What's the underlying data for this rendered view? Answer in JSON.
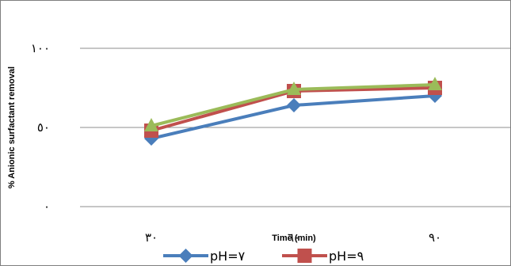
{
  "chart_data": {
    "type": "line",
    "title": "",
    "xlabel": "Time (min)",
    "ylabel": "% Anionic surfactant removal",
    "categories": [
      "٣٠",
      "٦٠",
      "٩٠"
    ],
    "x": [
      30,
      60,
      90
    ],
    "y_ticks": [
      "٠",
      "٥٠",
      "١٠٠"
    ],
    "ylim": [
      0,
      100
    ],
    "grid": true,
    "legend_position": "bottom",
    "series": [
      {
        "name": "pH=٧",
        "marker": "diamond",
        "color": "#4a7ebb",
        "values": [
          43,
          64,
          70
        ]
      },
      {
        "name": "pH=٩",
        "marker": "square",
        "color": "#c0504d",
        "values": [
          48,
          73,
          75
        ]
      },
      {
        "name": "",
        "marker": "triangle",
        "color": "#9bbb59",
        "values": [
          51,
          74,
          77
        ]
      }
    ]
  }
}
